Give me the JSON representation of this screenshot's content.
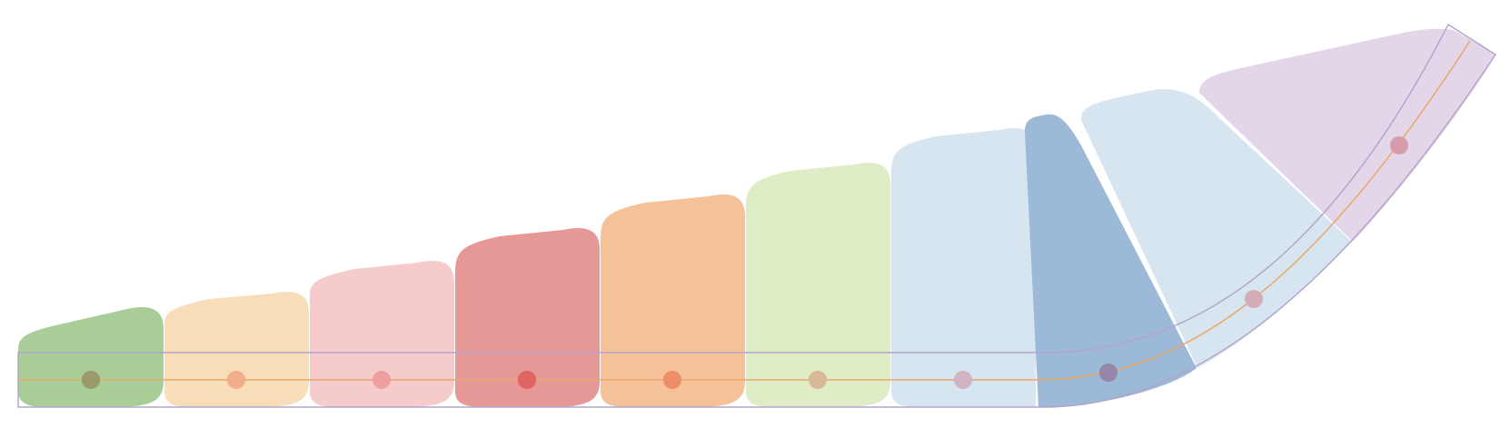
{
  "diagram": {
    "type": "gradient-bar-ribbon",
    "blocks": [
      {
        "id": "b1",
        "color": "#a8cd97"
      },
      {
        "id": "b2",
        "color": "#f8ddb9"
      },
      {
        "id": "b3",
        "color": "#f5cbcb"
      },
      {
        "id": "b4",
        "color": "#e69896"
      },
      {
        "id": "b5",
        "color": "#f4c198"
      },
      {
        "id": "b6",
        "color": "#dfedc7"
      },
      {
        "id": "b7",
        "color": "#d7e5f1"
      },
      {
        "id": "b8",
        "color": "#9cb9d7"
      },
      {
        "id": "b9",
        "color": "#d7e5f1"
      },
      {
        "id": "b10",
        "color": "#e3d6e8"
      }
    ],
    "dots": [
      {
        "id": "d1",
        "color": "#9a9a6a"
      },
      {
        "id": "d2",
        "color": "#f2ae8a"
      },
      {
        "id": "d3",
        "color": "#ef9f9f"
      },
      {
        "id": "d4",
        "color": "#e06462"
      },
      {
        "id": "d5",
        "color": "#ee8e68"
      },
      {
        "id": "d6",
        "color": "#d8b896"
      },
      {
        "id": "d7",
        "color": "#d2b3c2"
      },
      {
        "id": "d8",
        "color": "#9686a8"
      },
      {
        "id": "d9",
        "color": "#d4acb8"
      },
      {
        "id": "d10",
        "color": "#d69cac"
      }
    ],
    "colors": {
      "outline": "#b3a3cc",
      "centerline": "#e8a868",
      "centerline_right": "#cfb49b"
    }
  }
}
